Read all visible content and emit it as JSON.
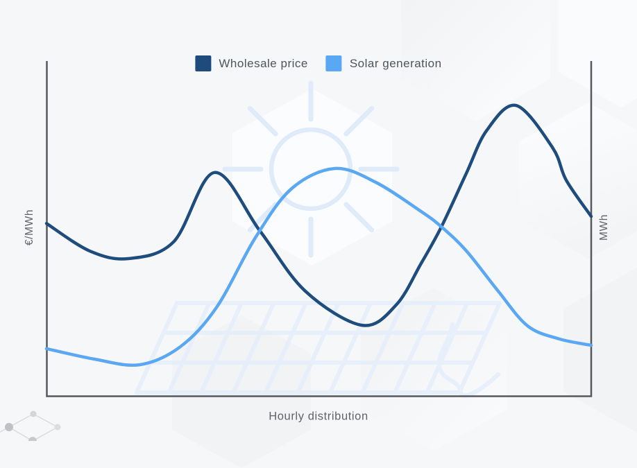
{
  "page": {
    "background_color": "#f6f7f8",
    "axis_color": "#54595d",
    "watermark_color": "#e3edfb",
    "text_color": "#4d545a"
  },
  "legend": {
    "items": [
      {
        "label": "Wholesale price",
        "color": "#1e4b7b"
      },
      {
        "label": "Solar generation",
        "color": "#5aa7f3"
      }
    ]
  },
  "axes": {
    "left_label": "€/MWh",
    "right_label": "MWh",
    "x_label": "Hourly distribution"
  },
  "decorations": [
    {
      "name": "sun-icon"
    },
    {
      "name": "solar-panel-icon"
    },
    {
      "name": "network-nodes-icon"
    },
    {
      "name": "hexagon-decoration"
    }
  ],
  "chart_data": {
    "type": "line",
    "title": "",
    "xlabel": "Hourly distribution",
    "ylabel_left": "€/MWh",
    "ylabel_right": "MWh",
    "x_range_hours": [
      0,
      24
    ],
    "y_relative_range": [
      0,
      100
    ],
    "ticks_shown": false,
    "grid": false,
    "legend_position": "top-center",
    "note": "Axes are unlabeled (no numeric ticks); y values are relative % of axis height, x is hour of day 0-24",
    "series": [
      {
        "name": "Wholesale price",
        "axis": "left",
        "color": "#1e4c7d",
        "points": [
          [
            0,
            51.5
          ],
          [
            1.9,
            43.3
          ],
          [
            3.6,
            41.0
          ],
          [
            5.6,
            46.0
          ],
          [
            7.4,
            66.7
          ],
          [
            9.4,
            49.3
          ],
          [
            11.4,
            31.3
          ],
          [
            13.9,
            21.1
          ],
          [
            15.4,
            27.1
          ],
          [
            16.5,
            39.5
          ],
          [
            17.4,
            50.5
          ],
          [
            18.5,
            66.5
          ],
          [
            19.4,
            79.3
          ],
          [
            20.7,
            86.7
          ],
          [
            22.3,
            74.1
          ],
          [
            22.9,
            64.4
          ],
          [
            24,
            53.6
          ]
        ]
      },
      {
        "name": "Solar generation",
        "axis": "right",
        "color": "#5aa7f3",
        "points": [
          [
            0,
            14.1
          ],
          [
            2.1,
            11.0
          ],
          [
            4.1,
            9.3
          ],
          [
            5.9,
            14.7
          ],
          [
            7.5,
            26.5
          ],
          [
            9.2,
            47.2
          ],
          [
            10.8,
            61.9
          ],
          [
            12.7,
            67.9
          ],
          [
            14.5,
            63.8
          ],
          [
            16.5,
            55.1
          ],
          [
            17.4,
            50.5
          ],
          [
            18.5,
            43.3
          ],
          [
            19.9,
            31.3
          ],
          [
            21.2,
            20.9
          ],
          [
            22.6,
            17.0
          ],
          [
            24,
            15.1
          ]
        ]
      }
    ]
  }
}
